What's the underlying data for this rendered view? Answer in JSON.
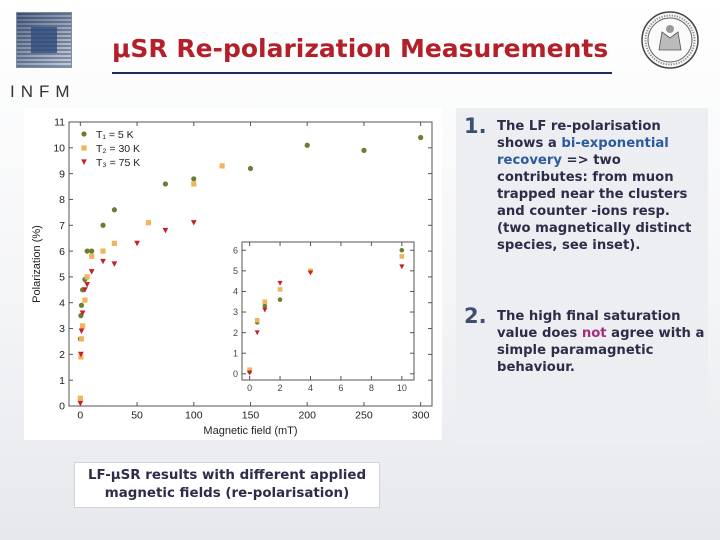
{
  "header": {
    "title": "μSR Re-polarization Measurements",
    "logo_text": "INFM"
  },
  "colors": {
    "title": "#b3202a",
    "series_5K": "#6b7d2e",
    "series_30K": "#f0b45c",
    "series_75K": "#c61e2a"
  },
  "chart_data": [
    {
      "type": "scatter",
      "xlabel": "Magnetic field (mT)",
      "ylabel": "Polarization (%)",
      "xlim": [
        -10,
        310
      ],
      "ylim": [
        0,
        11
      ],
      "xticks": [
        "0",
        "50",
        "100",
        "150",
        "200",
        "250",
        "300"
      ],
      "yticks": [
        "0",
        "1",
        "2",
        "3",
        "4",
        "5",
        "6",
        "7",
        "8",
        "9",
        "10",
        "11"
      ],
      "legend_position": "top-left",
      "series": [
        {
          "name": "T₁ = 5 K",
          "marker": "circle",
          "x": [
            0,
            0.5,
            1,
            2,
            4,
            6,
            10,
            20,
            30,
            75,
            100,
            150,
            200,
            250,
            300
          ],
          "y": [
            2.6,
            3.5,
            3.9,
            4.5,
            4.9,
            6.0,
            6.0,
            7.0,
            7.6,
            8.6,
            8.8,
            9.2,
            10.1,
            9.9,
            10.4
          ]
        },
        {
          "name": "T₂ = 30 K",
          "marker": "square",
          "x": [
            0,
            0.5,
            1,
            2,
            4,
            6,
            10,
            20,
            30,
            60,
            100,
            125
          ],
          "y": [
            0.3,
            1.9,
            2.6,
            3.1,
            4.1,
            5.0,
            5.8,
            6.0,
            6.3,
            7.1,
            8.6,
            9.3
          ]
        },
        {
          "name": "T₃ = 75 K",
          "marker": "triangle",
          "x": [
            0,
            0.5,
            1,
            2,
            4,
            6,
            10,
            20,
            30,
            50,
            75,
            100
          ],
          "y": [
            0.1,
            2.0,
            2.9,
            3.6,
            4.5,
            4.7,
            5.2,
            5.6,
            5.5,
            6.3,
            6.8,
            7.1
          ]
        }
      ]
    },
    {
      "type": "scatter",
      "note": "inset",
      "xlim": [
        -0.5,
        10.8
      ],
      "ylim": [
        -0.3,
        6.4
      ],
      "xticks": [
        "0",
        "2",
        "4",
        "6",
        "8",
        "10"
      ],
      "yticks": [
        "0",
        "1",
        "2",
        "3",
        "4",
        "5",
        "6"
      ],
      "series": [
        {
          "marker": "circle",
          "x": [
            0,
            0.5,
            1,
            2,
            4,
            10
          ],
          "y": [
            0.1,
            2.5,
            3.3,
            3.6,
            5.0,
            6.0
          ]
        },
        {
          "marker": "square",
          "x": [
            0,
            0.5,
            1,
            2,
            4,
            10
          ],
          "y": [
            0.2,
            2.6,
            3.5,
            4.1,
            5.0,
            5.7
          ]
        },
        {
          "marker": "triangle",
          "x": [
            0,
            0.5,
            1,
            2,
            4,
            10
          ],
          "y": [
            0.05,
            2.0,
            3.1,
            4.4,
            4.9,
            5.2
          ]
        }
      ]
    }
  ],
  "points": [
    {
      "number": "1.",
      "parts": [
        "The LF re-polarisation shows a ",
        "bi-exponential recovery",
        " => two contributes: from muon trapped near the clusters and counter -ions resp. (two magnetically distinct species, see inset)."
      ]
    },
    {
      "number": "2.",
      "parts": [
        "The high final saturation value does ",
        "not",
        " agree with a simple paramagnetic behaviour."
      ]
    }
  ],
  "caption": {
    "line1": "LF-μSR results with different applied",
    "line2": "magnetic fields (re-polarisation)"
  }
}
